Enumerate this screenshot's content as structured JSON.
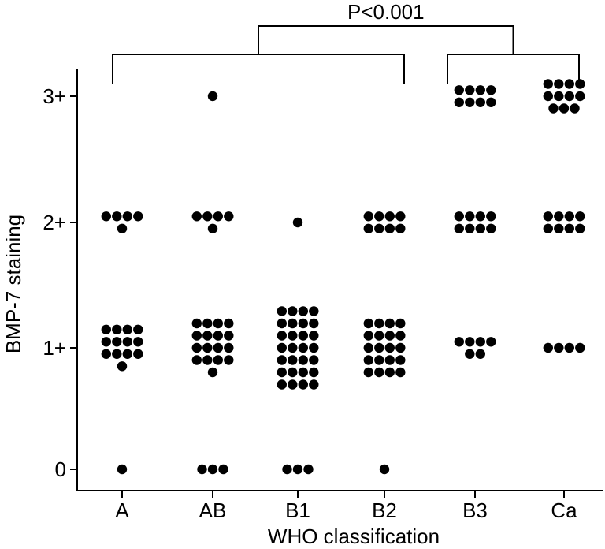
{
  "chart_data": {
    "type": "scatter",
    "subtype": "dot strip plot",
    "xlabel": "WHO classification",
    "ylabel": "BMP-7 staining",
    "categories": [
      "A",
      "AB",
      "B1",
      "B2",
      "B3",
      "Ca"
    ],
    "y_ticks": [
      {
        "value": 0,
        "label": "0"
      },
      {
        "value": 1,
        "label": "1+"
      },
      {
        "value": 2,
        "label": "2+"
      },
      {
        "value": 3,
        "label": "3+"
      }
    ],
    "ylim": [
      -0.2,
      3.2
    ],
    "grid": false,
    "legend": "none",
    "marker_color": "#000000",
    "counts": [
      {
        "category": "A",
        "score_0": 1,
        "score_1": 13,
        "score_2": 5,
        "score_3": 0
      },
      {
        "category": "AB",
        "score_0": 3,
        "score_1": 17,
        "score_2": 5,
        "score_3": 1
      },
      {
        "category": "B1",
        "score_0": 3,
        "score_1": 28,
        "score_2": 1,
        "score_3": 0
      },
      {
        "category": "B2",
        "score_0": 1,
        "score_1": 20,
        "score_2": 8,
        "score_3": 0
      },
      {
        "category": "B3",
        "score_0": 0,
        "score_1": 6,
        "score_2": 8,
        "score_3": 8
      },
      {
        "category": "Ca",
        "score_0": 0,
        "score_1": 4,
        "score_2": 8,
        "score_3": 11
      }
    ],
    "annotation": {
      "text": "P<0.001",
      "group_1": [
        "A",
        "AB",
        "B1",
        "B2"
      ],
      "group_2": [
        "B3",
        "Ca"
      ]
    }
  }
}
